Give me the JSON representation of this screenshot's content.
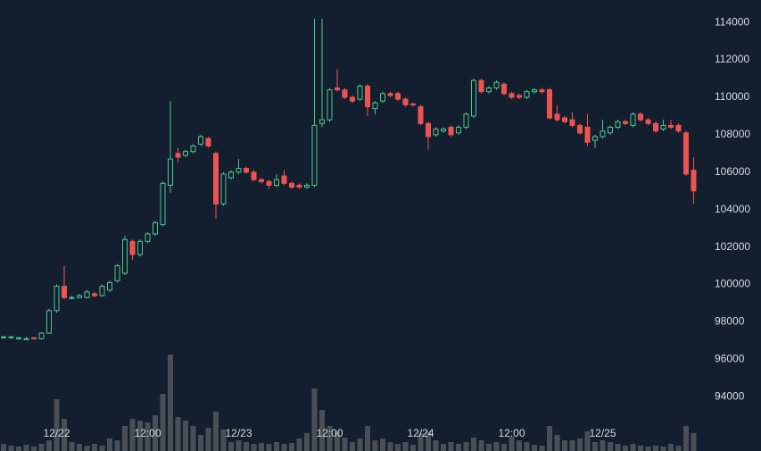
{
  "chart_data": {
    "type": "candlestick",
    "x": [
      null,
      null,
      null,
      null,
      null,
      null,
      null,
      "12/22",
      null,
      null,
      null,
      null,
      null,
      null,
      null,
      null,
      null,
      null,
      null,
      "12:00",
      null,
      null,
      null,
      null,
      null,
      null,
      null,
      null,
      null,
      null,
      null,
      "12/23",
      null,
      null,
      null,
      null,
      null,
      null,
      null,
      null,
      null,
      null,
      null,
      "12:00",
      null,
      null,
      null,
      null,
      null,
      null,
      null,
      null,
      null,
      null,
      null,
      "12/24",
      null,
      null,
      null,
      null,
      null,
      null,
      null,
      null,
      null,
      null,
      null,
      "12:00",
      null,
      null,
      null,
      null,
      null,
      null,
      null,
      null,
      null,
      null,
      null,
      "12/25",
      null,
      null,
      null,
      null,
      null,
      null,
      null,
      null,
      null,
      null,
      null,
      null
    ],
    "open": [
      97150,
      97150,
      97100,
      97100,
      97150,
      97100,
      97400,
      98600,
      99900,
      99300,
      99300,
      99300,
      99500,
      99400,
      99700,
      100200,
      100600,
      102300,
      101600,
      102300,
      102700,
      103200,
      105300,
      107000,
      106900,
      107100,
      107500,
      107800,
      107000,
      104300,
      105700,
      106000,
      106200,
      106000,
      105600,
      105500,
      105300,
      105800,
      105400,
      105300,
      105200,
      105300,
      108600,
      108800,
      110500,
      110400,
      110000,
      109900,
      110600,
      109400,
      109800,
      110200,
      110200,
      109900,
      109650,
      109500,
      108600,
      108000,
      108200,
      108400,
      108100,
      108400,
      109000,
      110900,
      110300,
      110500,
      110700,
      110200,
      110100,
      110000,
      110300,
      110400,
      110400,
      109100,
      108900,
      108800,
      108500,
      108400,
      107700,
      107900,
      108100,
      108400,
      108700,
      108500,
      109100,
      108800,
      108600,
      108300,
      108500,
      108500,
      108100,
      106100
    ],
    "high": [
      97250,
      97250,
      97200,
      97200,
      97200,
      97450,
      98700,
      100000,
      101000,
      99400,
      99500,
      99700,
      99600,
      100000,
      100200,
      101100,
      102600,
      102400,
      102400,
      102800,
      103400,
      105500,
      109800,
      107300,
      107200,
      107500,
      108000,
      107900,
      107100,
      106000,
      106100,
      106700,
      106300,
      106100,
      105700,
      105600,
      105900,
      106100,
      105500,
      105400,
      105400,
      114200,
      114200,
      110500,
      111500,
      110500,
      110100,
      110700,
      110700,
      109800,
      110300,
      110300,
      110300,
      110000,
      109700,
      109600,
      108700,
      108400,
      108400,
      108500,
      108500,
      109200,
      111000,
      111000,
      110600,
      110900,
      110800,
      110300,
      110200,
      110400,
      110500,
      110500,
      110500,
      109600,
      109000,
      109200,
      108600,
      109100,
      108000,
      108800,
      108500,
      108800,
      108800,
      109200,
      109200,
      108900,
      108700,
      108800,
      108800,
      108600,
      108200,
      106800
    ],
    "low": [
      97100,
      97100,
      97050,
      97050,
      97050,
      97050,
      97350,
      98500,
      99200,
      99200,
      99250,
      99250,
      99300,
      99350,
      99600,
      100100,
      100500,
      101300,
      101500,
      102200,
      102600,
      103100,
      104900,
      106500,
      106800,
      107000,
      107400,
      107300,
      103500,
      104200,
      105600,
      105900,
      105900,
      105500,
      105400,
      105100,
      105200,
      105300,
      105100,
      105100,
      105100,
      105200,
      108400,
      108700,
      110300,
      109900,
      109700,
      109800,
      109000,
      109100,
      109700,
      110000,
      109800,
      109500,
      109500,
      108500,
      107200,
      107900,
      108100,
      107900,
      108000,
      108300,
      108900,
      110200,
      110200,
      110400,
      110100,
      109900,
      109900,
      109900,
      110200,
      110200,
      108800,
      108700,
      108600,
      108400,
      108000,
      107400,
      107300,
      107800,
      108000,
      108300,
      108500,
      108400,
      108700,
      108500,
      108100,
      108200,
      108300,
      108100,
      105800,
      104300
    ],
    "close": [
      97200,
      97200,
      97150,
      97100,
      97100,
      97400,
      98600,
      99900,
      99300,
      99300,
      99400,
      99600,
      99400,
      99900,
      100100,
      101000,
      102400,
      101600,
      102300,
      102700,
      103300,
      105400,
      106700,
      106800,
      107100,
      107400,
      107900,
      107400,
      104300,
      105900,
      106000,
      106200,
      106000,
      105600,
      105500,
      105300,
      105600,
      105400,
      105200,
      105200,
      105300,
      108500,
      108800,
      110400,
      110400,
      110000,
      109800,
      110600,
      109500,
      109700,
      110200,
      110100,
      109900,
      109600,
      109600,
      108600,
      107900,
      108300,
      108300,
      108000,
      108400,
      109100,
      110900,
      110300,
      110500,
      110800,
      110200,
      110000,
      110000,
      110300,
      110400,
      110300,
      108900,
      108800,
      108700,
      108500,
      108100,
      107600,
      107900,
      108200,
      108400,
      108700,
      108600,
      109100,
      108800,
      108600,
      108200,
      108500,
      108400,
      108200,
      105900,
      105000
    ],
    "volume": [
      8,
      6,
      5,
      7,
      5,
      8,
      12,
      58,
      36,
      10,
      8,
      6,
      8,
      6,
      14,
      12,
      28,
      36,
      34,
      32,
      40,
      64,
      108,
      38,
      34,
      28,
      18,
      26,
      44,
      24,
      10,
      12,
      10,
      8,
      9,
      8,
      10,
      8,
      9,
      14,
      20,
      70,
      46,
      28,
      22,
      15,
      10,
      14,
      28,
      12,
      14,
      10,
      8,
      10,
      7,
      20,
      22,
      12,
      8,
      10,
      8,
      10,
      15,
      12,
      8,
      10,
      8,
      16,
      12,
      10,
      7,
      6,
      28,
      18,
      12,
      12,
      14,
      22,
      10,
      12,
      10,
      8,
      6,
      8,
      6,
      5,
      6,
      5,
      8,
      6,
      28,
      20
    ],
    "up_color": "#4fc490",
    "down_color": "#ef5350",
    "volume_color": "#4a4f57",
    "ylim": [
      91100,
      115200
    ],
    "yticks": [
      94000,
      96000,
      98000,
      100000,
      102000,
      104000,
      106000,
      108000,
      110000,
      112000,
      114000
    ]
  }
}
